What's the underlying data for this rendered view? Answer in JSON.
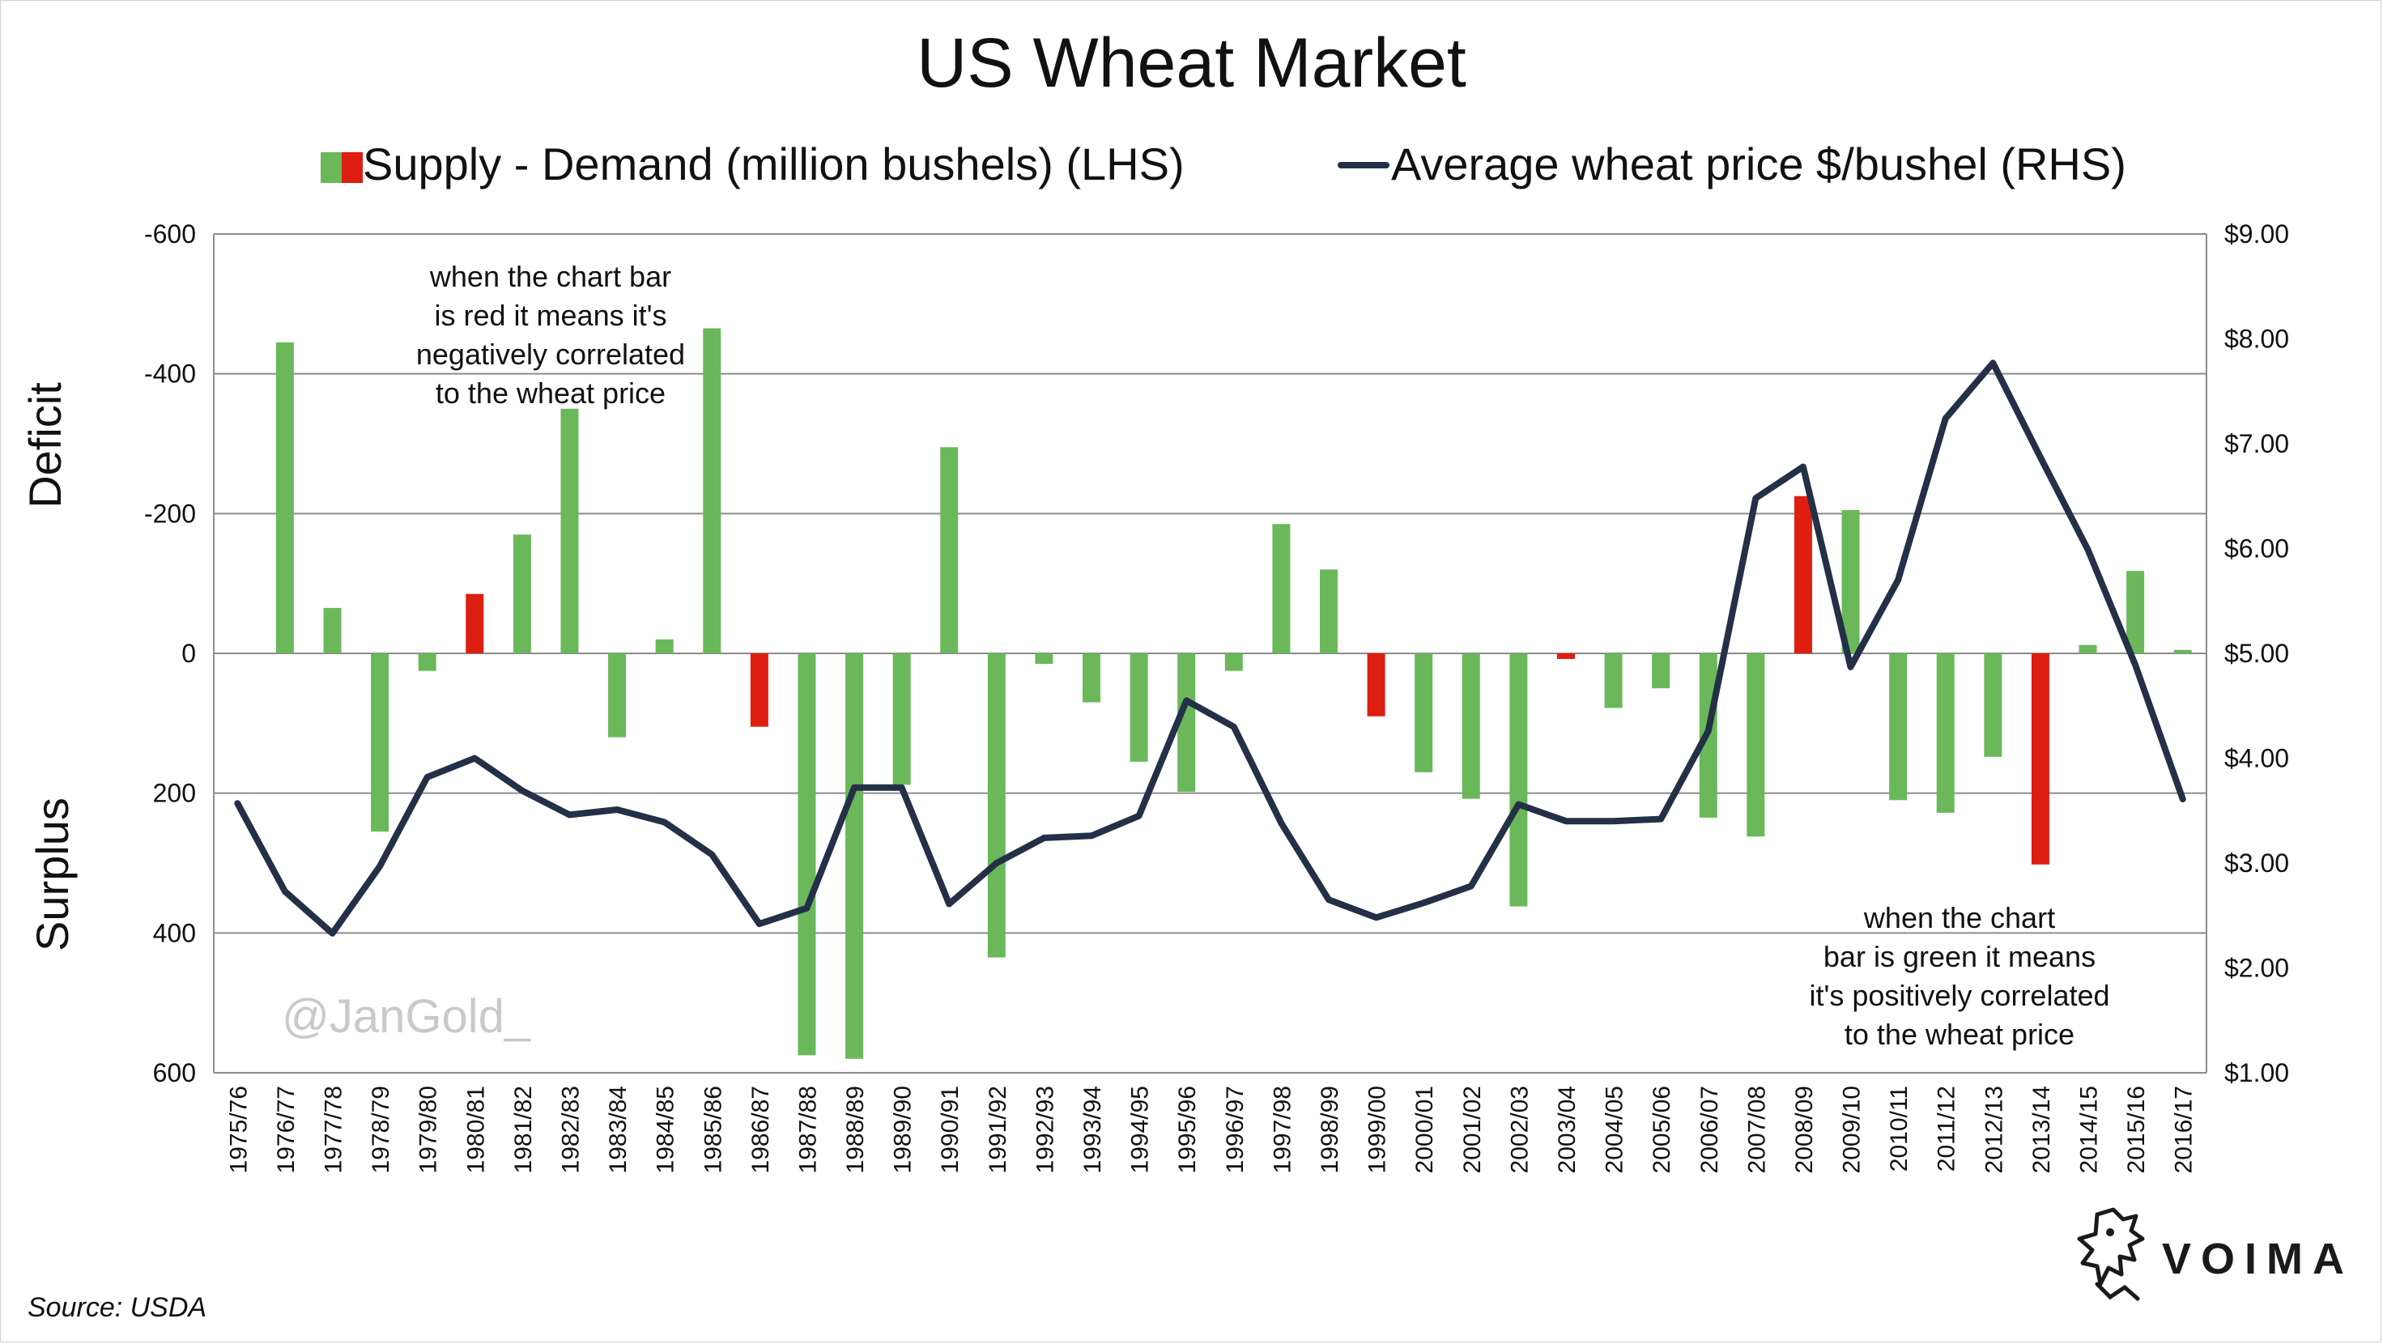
{
  "chart_data": {
    "type": "bar",
    "title": "US Wheat Market",
    "categories": [
      "1975/76",
      "1976/77",
      "1977/78",
      "1978/79",
      "1979/80",
      "1980/81",
      "1981/82",
      "1982/83",
      "1983/84",
      "1984/85",
      "1985/86",
      "1986/87",
      "1987/88",
      "1988/89",
      "1989/90",
      "1990/91",
      "1991/92",
      "1992/93",
      "1993/94",
      "1994/95",
      "1995/96",
      "1996/97",
      "1997/98",
      "1998/99",
      "1999/00",
      "2000/01",
      "2001/02",
      "2002/03",
      "2003/04",
      "2004/05",
      "2005/06",
      "2006/07",
      "2007/08",
      "2008/09",
      "2009/10",
      "2010/11",
      "2011/12",
      "2012/13",
      "2013/14",
      "2014/15",
      "2015/16",
      "2016/17"
    ],
    "series": [
      {
        "name": "Supply - Demand (million bushels) (LHS)",
        "axis": "left",
        "values": [
          null,
          -445,
          -65,
          255,
          25,
          -85,
          -170,
          -350,
          120,
          -20,
          -465,
          105,
          575,
          580,
          188,
          -295,
          435,
          15,
          70,
          155,
          198,
          25,
          -185,
          -120,
          90,
          170,
          208,
          362,
          8,
          78,
          50,
          235,
          262,
          -225,
          -205,
          210,
          228,
          148,
          302,
          -12,
          -118,
          -5
        ],
        "colors": [
          "green",
          "green",
          "green",
          "green",
          "green",
          "red",
          "green",
          "green",
          "green",
          "green",
          "green",
          "red",
          "green",
          "green",
          "green",
          "green",
          "green",
          "green",
          "green",
          "green",
          "green",
          "green",
          "green",
          "green",
          "red",
          "green",
          "green",
          "green",
          "red",
          "green",
          "green",
          "green",
          "green",
          "red",
          "green",
          "green",
          "green",
          "green",
          "red",
          "green",
          "green",
          "green"
        ]
      },
      {
        "name": "Average wheat price $/bushel (RHS)",
        "axis": "right",
        "type": "line",
        "values": [
          3.57,
          2.73,
          2.33,
          2.97,
          3.82,
          4.0,
          3.69,
          3.46,
          3.51,
          3.39,
          3.08,
          2.42,
          2.57,
          3.72,
          3.72,
          2.61,
          3.0,
          3.24,
          3.26,
          3.45,
          4.55,
          4.3,
          3.38,
          2.65,
          2.48,
          2.62,
          2.78,
          3.56,
          3.4,
          3.4,
          3.42,
          4.26,
          6.48,
          6.78,
          4.87,
          5.7,
          7.24,
          7.77,
          6.87,
          5.99,
          4.89,
          3.61
        ]
      }
    ],
    "left_axis": {
      "ticks": [
        -600,
        -400,
        -200,
        0,
        200,
        400,
        600
      ],
      "tick_labels": [
        "-600",
        "-400",
        "-200",
        "0",
        "200",
        "400",
        "600"
      ],
      "range": [
        -600,
        600
      ],
      "label_top": "Deficit",
      "label_bottom": "Surplus"
    },
    "right_axis": {
      "ticks": [
        9,
        8,
        7,
        6,
        5,
        4,
        3,
        2,
        1
      ],
      "tick_labels": [
        "$9.00",
        "$8.00",
        "$7.00",
        "$6.00",
        "$5.00",
        "$4.00",
        "$3.00",
        "$2.00",
        "$1.00"
      ],
      "range": [
        1,
        9
      ]
    },
    "grid": true,
    "legend": "top",
    "annotations": [
      [
        "when the chart bar",
        "is red it means it's",
        "negatively correlated",
        "to the wheat price"
      ],
      [
        "when the chart",
        "bar is green it means",
        "it's positively correlated",
        "to the wheat price"
      ]
    ]
  },
  "colors": {
    "bar_green": "#6ab85a",
    "bar_red": "#dd1e10",
    "line": "#243047",
    "grid": "#8c8c8c"
  },
  "source": "Source: USDA",
  "watermark": "@JanGold_",
  "brand": {
    "name": "VOIMA",
    "icon": "lion-icon"
  }
}
